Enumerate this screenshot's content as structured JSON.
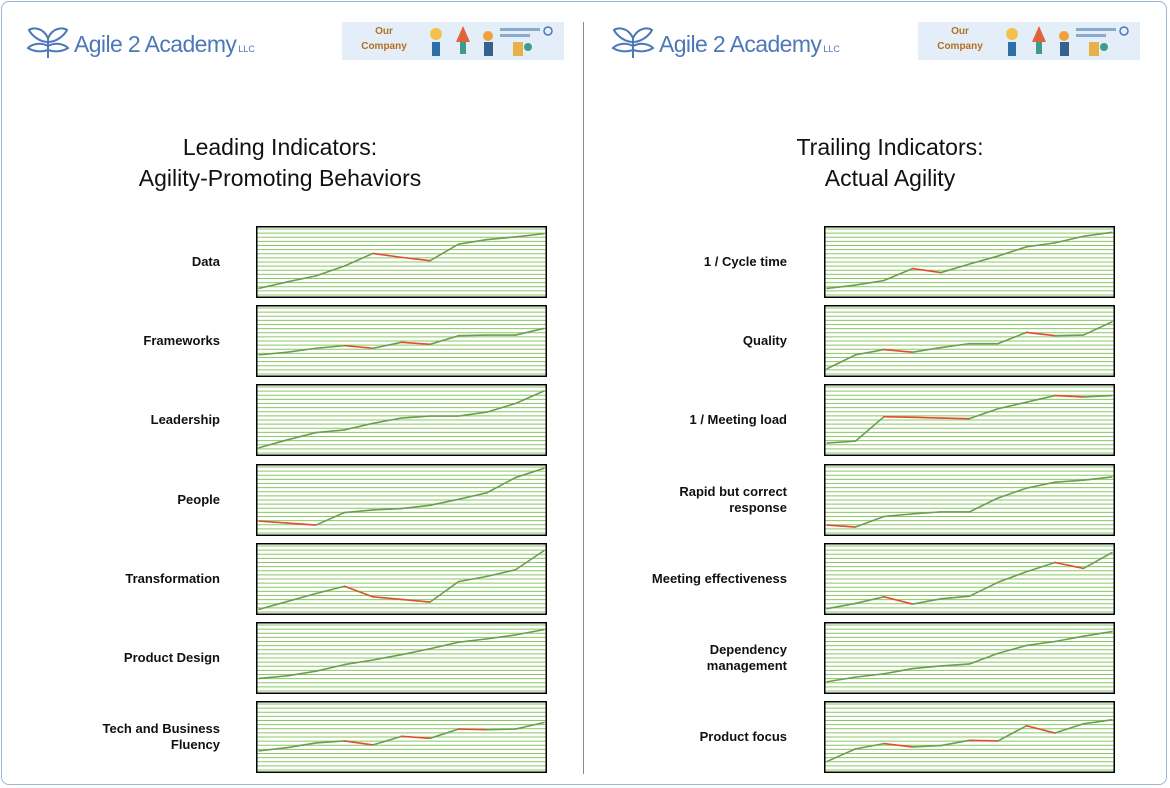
{
  "colors": {
    "line_up": "#6a9e50",
    "line_down": "#e04e2c",
    "grid": "#8cc766",
    "frame": "#000000",
    "brand": "#4d78b8",
    "banner_text": "#b27020"
  },
  "left": {
    "logo": {
      "name": "Agile 2 Academy",
      "suffix": "LLC",
      "icon": "leaf-plant-icon"
    },
    "banner": {
      "line1": "Our",
      "line2": "Company",
      "art": "startup-illustration"
    },
    "title_line1": "Leading Indicators:",
    "title_line2": "Agility-Promoting Behaviors",
    "rows": [
      {
        "label": "Data"
      },
      {
        "label": "Frameworks"
      },
      {
        "label": "Leadership"
      },
      {
        "label": "People"
      },
      {
        "label": "Transformation"
      },
      {
        "label": "Product Design"
      },
      {
        "label": "Tech and Business\nFluency"
      }
    ]
  },
  "right": {
    "logo": {
      "name": "Agile 2 Academy",
      "suffix": "LLC",
      "icon": "leaf-plant-icon"
    },
    "banner": {
      "line1": "Our",
      "line2": "Company",
      "art": "startup-illustration"
    },
    "title_line1": "Trailing Indicators:",
    "title_line2": "Actual Agility",
    "rows": [
      {
        "label": "1 / Cycle time"
      },
      {
        "label": "Quality"
      },
      {
        "label": "1 / Meeting load"
      },
      {
        "label": "Rapid but correct\nresponse"
      },
      {
        "label": "Meeting effectiveness"
      },
      {
        "label": "Dependency\nmanagement"
      },
      {
        "label": "Product focus"
      }
    ]
  },
  "chart_data": [
    {
      "type": "line",
      "title": "Data",
      "ylim": [
        0,
        1
      ],
      "grid": true,
      "x": [
        0,
        1,
        2,
        3,
        4,
        5,
        6,
        7,
        8,
        9,
        10
      ],
      "values": [
        0.1,
        0.2,
        0.29,
        0.44,
        0.63,
        0.57,
        0.52,
        0.77,
        0.84,
        0.88,
        0.93
      ]
    },
    {
      "type": "line",
      "title": "Frameworks",
      "ylim": [
        0,
        1
      ],
      "grid": true,
      "x": [
        0,
        1,
        2,
        3,
        4,
        5,
        6,
        7,
        8,
        9,
        10
      ],
      "values": [
        0.29,
        0.33,
        0.39,
        0.43,
        0.39,
        0.48,
        0.45,
        0.58,
        0.59,
        0.59,
        0.69
      ]
    },
    {
      "type": "line",
      "title": "Leadership",
      "ylim": [
        0,
        1
      ],
      "grid": true,
      "x": [
        0,
        1,
        2,
        3,
        4,
        5,
        6,
        7,
        8,
        9,
        10
      ],
      "values": [
        0.08,
        0.2,
        0.31,
        0.35,
        0.45,
        0.53,
        0.56,
        0.56,
        0.62,
        0.75,
        0.94
      ]
    },
    {
      "type": "line",
      "title": "People",
      "ylim": [
        0,
        1
      ],
      "grid": true,
      "x": [
        0,
        1,
        2,
        3,
        4,
        5,
        6,
        7,
        8,
        9,
        10
      ],
      "values": [
        0.18,
        0.15,
        0.12,
        0.31,
        0.35,
        0.37,
        0.42,
        0.51,
        0.61,
        0.84,
        0.98
      ]
    },
    {
      "type": "line",
      "title": "Transformation",
      "ylim": [
        0,
        1
      ],
      "grid": true,
      "x": [
        0,
        1,
        2,
        3,
        4,
        5,
        6,
        7,
        8,
        9,
        10
      ],
      "values": [
        0.04,
        0.16,
        0.28,
        0.39,
        0.23,
        0.19,
        0.15,
        0.46,
        0.54,
        0.64,
        0.93
      ]
    },
    {
      "type": "line",
      "title": "Product Design",
      "ylim": [
        0,
        1
      ],
      "grid": true,
      "x": [
        0,
        1,
        2,
        3,
        4,
        5,
        6,
        7,
        8,
        9,
        10
      ],
      "values": [
        0.19,
        0.23,
        0.3,
        0.4,
        0.47,
        0.55,
        0.64,
        0.74,
        0.79,
        0.85,
        0.93
      ]
    },
    {
      "type": "line",
      "title": "Tech and Business Fluency",
      "ylim": [
        0,
        1
      ],
      "grid": true,
      "x": [
        0,
        1,
        2,
        3,
        4,
        5,
        6,
        7,
        8,
        9,
        10
      ],
      "values": [
        0.29,
        0.34,
        0.41,
        0.44,
        0.38,
        0.51,
        0.48,
        0.62,
        0.61,
        0.62,
        0.72
      ]
    },
    {
      "type": "line",
      "title": "1 / Cycle time",
      "ylim": [
        0,
        1
      ],
      "grid": true,
      "x": [
        0,
        1,
        2,
        3,
        4,
        5,
        6,
        7,
        8,
        9,
        10
      ],
      "values": [
        0.1,
        0.15,
        0.22,
        0.4,
        0.34,
        0.47,
        0.59,
        0.73,
        0.79,
        0.89,
        0.95
      ]
    },
    {
      "type": "line",
      "title": "Quality",
      "ylim": [
        0,
        1
      ],
      "grid": true,
      "x": [
        0,
        1,
        2,
        3,
        4,
        5,
        6,
        7,
        8,
        9,
        10
      ],
      "values": [
        0.08,
        0.29,
        0.37,
        0.33,
        0.4,
        0.46,
        0.46,
        0.63,
        0.58,
        0.59,
        0.79
      ]
    },
    {
      "type": "line",
      "title": "1 / Meeting load",
      "ylim": [
        0,
        1
      ],
      "grid": true,
      "x": [
        0,
        1,
        2,
        3,
        4,
        5,
        6,
        7,
        8,
        9,
        10
      ],
      "values": [
        0.15,
        0.18,
        0.55,
        0.54,
        0.53,
        0.52,
        0.67,
        0.77,
        0.87,
        0.85,
        0.87
      ]
    },
    {
      "type": "line",
      "title": "Rapid but correct response",
      "ylim": [
        0,
        1
      ],
      "grid": true,
      "x": [
        0,
        1,
        2,
        3,
        4,
        5,
        6,
        7,
        8,
        9,
        10
      ],
      "values": [
        0.12,
        0.09,
        0.25,
        0.29,
        0.32,
        0.32,
        0.53,
        0.68,
        0.77,
        0.8,
        0.85
      ]
    },
    {
      "type": "line",
      "title": "Meeting effectiveness",
      "ylim": [
        0,
        1
      ],
      "grid": true,
      "x": [
        0,
        1,
        2,
        3,
        4,
        5,
        6,
        7,
        8,
        9,
        10
      ],
      "values": [
        0.05,
        0.13,
        0.23,
        0.12,
        0.2,
        0.24,
        0.45,
        0.61,
        0.75,
        0.66,
        0.9
      ]
    },
    {
      "type": "line",
      "title": "Dependency management",
      "ylim": [
        0,
        1
      ],
      "grid": true,
      "x": [
        0,
        1,
        2,
        3,
        4,
        5,
        6,
        7,
        8,
        9,
        10
      ],
      "values": [
        0.14,
        0.21,
        0.26,
        0.34,
        0.38,
        0.41,
        0.57,
        0.69,
        0.75,
        0.83,
        0.9
      ]
    },
    {
      "type": "line",
      "title": "Product focus",
      "ylim": [
        0,
        1
      ],
      "grid": true,
      "x": [
        0,
        1,
        2,
        3,
        4,
        5,
        6,
        7,
        8,
        9,
        10
      ],
      "values": [
        0.13,
        0.32,
        0.4,
        0.35,
        0.37,
        0.45,
        0.44,
        0.67,
        0.56,
        0.7,
        0.76
      ]
    }
  ]
}
